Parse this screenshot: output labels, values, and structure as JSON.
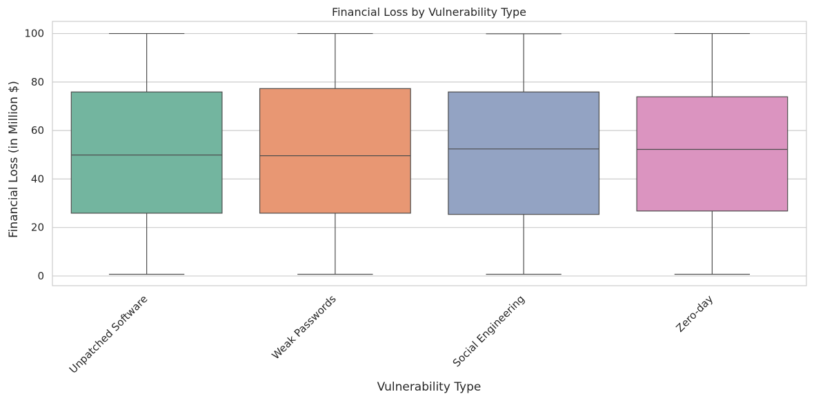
{
  "chart_data": {
    "type": "box",
    "title": "Financial Loss by Vulnerability Type",
    "xlabel": "Vulnerability Type",
    "ylabel": "Financial Loss (in Million $)",
    "ylim": [
      -4,
      105
    ],
    "yticks": [
      0,
      20,
      40,
      60,
      80,
      100
    ],
    "grid": true,
    "categories": [
      "Unpatched Software",
      "Weak Passwords",
      "Social Engineering",
      "Zero-day"
    ],
    "boxes": [
      {
        "category": "Unpatched Software",
        "min": 0.7,
        "q1": 25.9,
        "median": 49.9,
        "q3": 75.9,
        "max": 100.0,
        "color": "#73b59f"
      },
      {
        "category": "Weak Passwords",
        "min": 0.7,
        "q1": 25.9,
        "median": 49.6,
        "q3": 77.3,
        "max": 100.0,
        "color": "#e89773"
      },
      {
        "category": "Social Engineering",
        "min": 0.7,
        "q1": 25.4,
        "median": 52.4,
        "q3": 75.9,
        "max": 99.9,
        "color": "#93a3c3"
      },
      {
        "category": "Zero-day",
        "min": 0.7,
        "q1": 26.8,
        "median": 52.2,
        "q3": 73.9,
        "max": 100.0,
        "color": "#db94c0"
      }
    ]
  }
}
